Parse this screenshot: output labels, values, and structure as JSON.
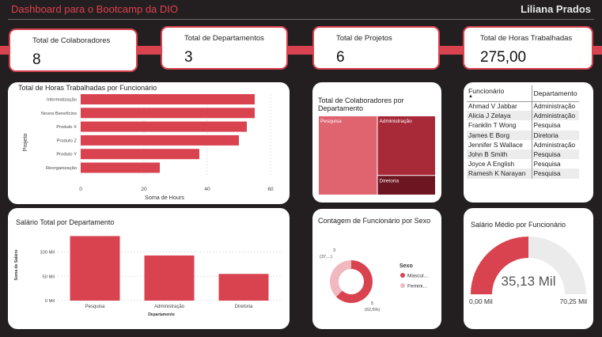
{
  "header": {
    "title": "Dashboard para o Bootcamp da DIO",
    "user": "Liliana Prados"
  },
  "kpis": [
    {
      "label": "Total de Colaboradores",
      "value": "8"
    },
    {
      "label": "Total de Departamentos",
      "value": "3"
    },
    {
      "label": "Total de Projetos",
      "value": "6"
    },
    {
      "label": "Total de Horas Trabalhadas",
      "value": "275,00"
    }
  ],
  "hours_chart": {
    "title": "Total de Horas Trabalhadas por Funcionário",
    "chart_data": {
      "type": "bar",
      "orientation": "horizontal",
      "categories": [
        "Informatização",
        "Novos Benefícios",
        "Produto X",
        "Produto Z",
        "Produto Y",
        "Reorganização"
      ],
      "values": [
        55,
        55,
        52.5,
        50,
        37.5,
        25
      ],
      "xlabel": "Soma de Hours",
      "ylabel": "Projeto",
      "xlim": [
        0,
        60
      ],
      "xticks": [
        "0",
        "20",
        "40",
        "60"
      ],
      "color": "#d9434f",
      "grid": true
    }
  },
  "treemap": {
    "title": "Total de Colaboradores por Departamento",
    "chart_data": {
      "type": "treemap",
      "categories": [
        "Pesquisa",
        "Administração",
        "Diretoria"
      ],
      "values": [
        4,
        3,
        1
      ],
      "colors": [
        "#e06470",
        "#a82a38",
        "#6d1520"
      ]
    }
  },
  "table": {
    "headers": [
      "Funcionário",
      "Departamento"
    ],
    "rows": [
      [
        "Ahmad V Jabbar",
        "Administração"
      ],
      [
        "Alicia J Zelaya",
        "Administração"
      ],
      [
        "Franklin T Wong",
        "Pesquisa"
      ],
      [
        "James E Borg",
        "Diretoria"
      ],
      [
        "Jennifer S Wallace",
        "Administração"
      ],
      [
        "John B Smith",
        "Pesquisa"
      ],
      [
        "Joyce A English",
        "Pesquisa"
      ],
      [
        "Ramesh K Narayan",
        "Pesquisa"
      ]
    ]
  },
  "salary_chart": {
    "title": "Salário Total por Departamento",
    "chart_data": {
      "type": "bar",
      "categories": [
        "Pesquisa",
        "Administração",
        "Diretoria"
      ],
      "values": [
        133000,
        93000,
        55000
      ],
      "ylabel": "Soma de Salário",
      "xlabel": "Departamento",
      "ylim": [
        0,
        150000
      ],
      "yticks": [
        {
          "value": 0,
          "label": "0 Mil"
        },
        {
          "value": 50000,
          "label": "50 Mil"
        },
        {
          "value": 100000,
          "label": "100 Mil"
        }
      ],
      "color": "#d9434f",
      "grid": true
    }
  },
  "donut": {
    "title": "Contagem de Funcionário por Sexo",
    "legend_title": "Sexo",
    "chart_data": {
      "type": "pie",
      "donut": true,
      "series": [
        {
          "name": "Mascul...",
          "value": 5,
          "label_value": "5",
          "label_pct": "(62,5%)",
          "color": "#d9434f"
        },
        {
          "name": "Femini...",
          "value": 3,
          "label_value": "3",
          "label_pct": "(37,...)",
          "color": "#f2b8bf"
        }
      ],
      "legend": "right"
    }
  },
  "gauge": {
    "title": "Salário Médio por Funcionário",
    "value_label": "35,13 Mil",
    "min_label": "0,00 Mil",
    "max_label": "70,25 Mil",
    "chart_data": {
      "type": "gauge",
      "value": 35.13,
      "min": 0,
      "max": 70.25,
      "color": "#d9434f",
      "track_color": "#ebebeb"
    }
  }
}
